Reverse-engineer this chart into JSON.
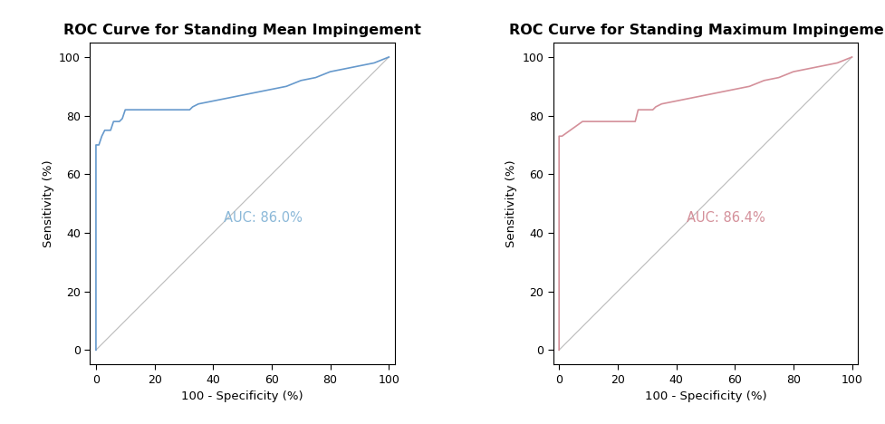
{
  "plot1": {
    "title": "ROC Curve for Standing Mean Impingement",
    "color": "#6699CC",
    "auc_text": "AUC: 86.0%",
    "auc_text_color": "#8BB8D8",
    "roc_x": [
      0,
      0,
      1,
      2,
      3,
      5,
      6,
      8,
      9,
      10,
      30,
      32,
      33,
      35,
      40,
      45,
      50,
      55,
      60,
      65,
      70,
      75,
      80,
      85,
      90,
      95,
      100
    ],
    "roc_y": [
      0,
      70,
      70,
      73,
      75,
      75,
      78,
      78,
      79,
      82,
      82,
      82,
      83,
      84,
      85,
      86,
      87,
      88,
      89,
      90,
      92,
      93,
      95,
      96,
      97,
      98,
      100
    ],
    "xlabel": "100 - Specificity (%)",
    "ylabel": "Sensitivity (%)"
  },
  "plot2": {
    "title": "ROC Curve for Standing Maximum Impingement",
    "color": "#D4909A",
    "auc_text": "AUC: 86.4%",
    "auc_text_color": "#D4909A",
    "roc_x": [
      0,
      0,
      1,
      8,
      9,
      26,
      27,
      32,
      33,
      35,
      40,
      45,
      50,
      55,
      60,
      65,
      70,
      75,
      80,
      85,
      90,
      95,
      100
    ],
    "roc_y": [
      0,
      73,
      73,
      78,
      78,
      78,
      82,
      82,
      83,
      84,
      85,
      86,
      87,
      88,
      89,
      90,
      92,
      93,
      95,
      96,
      97,
      98,
      100
    ],
    "xlabel": "100 - Specificity (%)",
    "ylabel": "Sensitivity (%)"
  },
  "diagonal": [
    0,
    100
  ],
  "diagonal_color": "#BBBBBB",
  "xticks": [
    0,
    20,
    40,
    60,
    80,
    100
  ],
  "yticks": [
    0,
    20,
    40,
    60,
    80,
    100
  ],
  "xlim": [
    -2,
    102
  ],
  "ylim": [
    -5,
    105
  ],
  "background_color": "#FFFFFF",
  "title_fontsize": 11.5,
  "label_fontsize": 9.5,
  "tick_fontsize": 9,
  "auc_fontsize": 10.5
}
